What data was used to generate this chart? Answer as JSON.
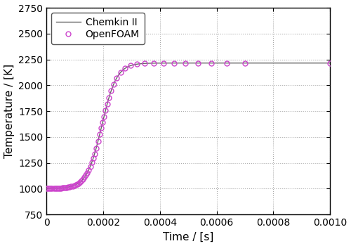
{
  "title": "",
  "xlabel": "Time / [s]",
  "ylabel": "Temperature / [K]",
  "xlim": [
    0,
    0.001
  ],
  "ylim": [
    750,
    2750
  ],
  "yticks": [
    750,
    1000,
    1250,
    1500,
    1750,
    2000,
    2250,
    2500,
    2750
  ],
  "xticks": [
    0,
    0.0002,
    0.0004,
    0.0006,
    0.0008,
    0.001
  ],
  "chemkin_color": "#666666",
  "openfoam_color": "#cc44cc",
  "background_color": "#ffffff",
  "grid_color": "#aaaaaa",
  "legend_labels": [
    "OpenFOAM",
    "Chemkin II"
  ],
  "T_init": 1000.0,
  "T_final": 2215.0,
  "t_ign": 0.000195,
  "steepness": 38000,
  "figsize": [
    5.0,
    3.5
  ],
  "dpi": 100
}
